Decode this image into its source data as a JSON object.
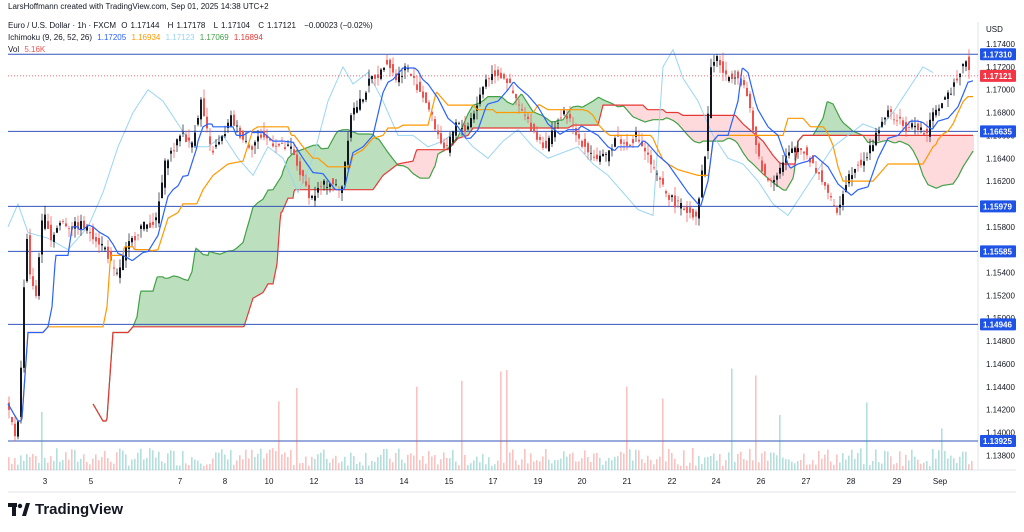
{
  "header": {
    "credit": "LarsHoffmann created with TradingView.com, Sep 01, 2025 14:38 UTC+2",
    "symbol": "Euro / U.S. Dollar · 1h · FXCM",
    "o_label": "O",
    "o_value": "1.17144",
    "h_label": "H",
    "h_value": "1.17178",
    "l_label": "L",
    "l_value": "1.17104",
    "c_label": "C",
    "c_value": "1.17121",
    "change": "−0.00023 (−0.02%)",
    "ichimoku_label": "Ichimoku (9, 26, 52, 26)",
    "ichimoku_values": [
      "1.17205",
      "1.16934",
      "1.17123",
      "1.17069",
      "1.16894"
    ],
    "vol_label": "Vol",
    "vol_value": "5.16K"
  },
  "brand": {
    "name": "TradingView"
  },
  "colors": {
    "up": "#26a69a",
    "down": "#ef5350",
    "candle_up": "#131722",
    "candle_down": "#ef5350",
    "tenkan": "#2962ff",
    "kijun": "#ff9800",
    "chikou": "#9ad5f2",
    "span_a": "#43a047",
    "span_b": "#e53935",
    "cloud_bull": "#a5d6a7",
    "cloud_bear": "#ffcdd2",
    "level_line": "#3355bb",
    "level_bg": "#1e53e5",
    "current_bg": "#f23645"
  },
  "chart_data": {
    "type": "candlestick",
    "title": "Euro / U.S. Dollar · 1h · FXCM",
    "currency_label": "USD",
    "ylim": [
      1.137,
      1.176
    ],
    "y_ticks": [
      "1.17400",
      "1.17200",
      "1.17000",
      "1.16800",
      "1.16600",
      "1.16400",
      "1.16200",
      "1.16000",
      "1.15800",
      "1.15600",
      "1.15400",
      "1.15200",
      "1.15000",
      "1.14800",
      "1.14600",
      "1.14400",
      "1.14200",
      "1.14000",
      "1.13800"
    ],
    "x_ticks": [
      "3",
      "5",
      "7",
      "8",
      "10",
      "12",
      "13",
      "14",
      "15",
      "17",
      "19",
      "20",
      "21",
      "22",
      "24",
      "26",
      "27",
      "28",
      "29",
      "Sep"
    ],
    "horizontal_levels": [
      "1.17310",
      "1.16635",
      "1.15979",
      "1.15585",
      "1.14946",
      "1.13925"
    ],
    "last_price": "1.17121",
    "price_path": [
      [
        0,
        1.1425
      ],
      [
        10,
        1.1395
      ],
      [
        14,
        1.143
      ],
      [
        20,
        1.158
      ],
      [
        25,
        1.153
      ],
      [
        30,
        1.152
      ],
      [
        35,
        1.158
      ],
      [
        40,
        1.159
      ],
      [
        45,
        1.157
      ],
      [
        55,
        1.1585
      ],
      [
        65,
        1.158
      ],
      [
        75,
        1.1582
      ],
      [
        85,
        1.1575
      ],
      [
        100,
        1.156
      ],
      [
        110,
        1.1535
      ],
      [
        120,
        1.156
      ],
      [
        135,
        1.158
      ],
      [
        150,
        1.1585
      ],
      [
        160,
        1.164
      ],
      [
        170,
        1.165
      ],
      [
        175,
        1.1665
      ],
      [
        185,
        1.165
      ],
      [
        195,
        1.169
      ],
      [
        205,
        1.1645
      ],
      [
        215,
        1.1655
      ],
      [
        225,
        1.1675
      ],
      [
        235,
        1.166
      ],
      [
        245,
        1.165
      ],
      [
        255,
        1.166
      ],
      [
        265,
        1.1655
      ],
      [
        275,
        1.165
      ],
      [
        285,
        1.1648
      ],
      [
        295,
        1.1625
      ],
      [
        305,
        1.1605
      ],
      [
        315,
        1.1615
      ],
      [
        325,
        1.162
      ],
      [
        335,
        1.161
      ],
      [
        345,
        1.168
      ],
      [
        355,
        1.169
      ],
      [
        365,
        1.171
      ],
      [
        375,
        1.1715
      ],
      [
        380,
        1.1728
      ],
      [
        390,
        1.171
      ],
      [
        400,
        1.172
      ],
      [
        410,
        1.1705
      ],
      [
        420,
        1.169
      ],
      [
        430,
        1.1665
      ],
      [
        440,
        1.1645
      ],
      [
        450,
        1.167
      ],
      [
        460,
        1.1665
      ],
      [
        470,
        1.1685
      ],
      [
        480,
        1.171
      ],
      [
        490,
        1.1715
      ],
      [
        500,
        1.171
      ],
      [
        510,
        1.169
      ],
      [
        520,
        1.1675
      ],
      [
        530,
        1.166
      ],
      [
        540,
        1.165
      ],
      [
        550,
        1.167
      ],
      [
        560,
        1.168
      ],
      [
        570,
        1.166
      ],
      [
        580,
        1.165
      ],
      [
        590,
        1.164
      ],
      [
        600,
        1.164
      ],
      [
        610,
        1.166
      ],
      [
        620,
        1.165
      ],
      [
        630,
        1.166
      ],
      [
        640,
        1.1645
      ],
      [
        650,
        1.1625
      ],
      [
        660,
        1.161
      ],
      [
        670,
        1.16
      ],
      [
        680,
        1.1595
      ],
      [
        690,
        1.159
      ],
      [
        700,
        1.165
      ],
      [
        705,
        1.172
      ],
      [
        710,
        1.173
      ],
      [
        720,
        1.171
      ],
      [
        730,
        1.1715
      ],
      [
        740,
        1.17
      ],
      [
        750,
        1.165
      ],
      [
        760,
        1.162
      ],
      [
        770,
        1.1625
      ],
      [
        780,
        1.164
      ],
      [
        790,
        1.165
      ],
      [
        800,
        1.1645
      ],
      [
        810,
        1.163
      ],
      [
        820,
        1.1615
      ],
      [
        830,
        1.159
      ],
      [
        840,
        1.162
      ],
      [
        850,
        1.1635
      ],
      [
        860,
        1.164
      ],
      [
        870,
        1.166
      ],
      [
        880,
        1.168
      ],
      [
        890,
        1.1675
      ],
      [
        900,
        1.1665
      ],
      [
        910,
        1.167
      ],
      [
        920,
        1.166
      ],
      [
        930,
        1.1685
      ],
      [
        940,
        1.169
      ],
      [
        950,
        1.171
      ],
      [
        960,
        1.1728
      ],
      [
        965,
        1.1712
      ]
    ],
    "chikou_path": [
      [
        0,
        1.158
      ],
      [
        10,
        1.16
      ],
      [
        20,
        1.1575
      ],
      [
        40,
        1.157
      ],
      [
        60,
        1.156
      ],
      [
        80,
        1.158
      ],
      [
        95,
        1.161
      ],
      [
        110,
        1.165
      ],
      [
        125,
        1.168
      ],
      [
        140,
        1.17
      ],
      [
        155,
        1.169
      ],
      [
        170,
        1.167
      ],
      [
        185,
        1.165
      ],
      [
        200,
        1.165
      ],
      [
        215,
        1.166
      ],
      [
        230,
        1.164
      ],
      [
        245,
        1.1625
      ],
      [
        260,
        1.165
      ],
      [
        275,
        1.164
      ],
      [
        290,
        1.161
      ],
      [
        305,
        1.164
      ],
      [
        320,
        1.169
      ],
      [
        335,
        1.172
      ],
      [
        345,
        1.1705
      ],
      [
        360,
        1.1715
      ],
      [
        375,
        1.169
      ],
      [
        390,
        1.166
      ],
      [
        405,
        1.166
      ],
      [
        420,
        1.165
      ],
      [
        435,
        1.1655
      ],
      [
        450,
        1.1665
      ],
      [
        465,
        1.165
      ],
      [
        480,
        1.164
      ],
      [
        495,
        1.1655
      ],
      [
        510,
        1.1665
      ],
      [
        525,
        1.165
      ],
      [
        540,
        1.164
      ],
      [
        555,
        1.1645
      ],
      [
        570,
        1.165
      ],
      [
        585,
        1.1635
      ],
      [
        600,
        1.1625
      ],
      [
        615,
        1.161
      ],
      [
        630,
        1.1595
      ],
      [
        645,
        1.159
      ],
      [
        655,
        1.172
      ],
      [
        665,
        1.1735
      ],
      [
        675,
        1.171
      ],
      [
        690,
        1.169
      ],
      [
        705,
        1.166
      ],
      [
        720,
        1.164
      ],
      [
        735,
        1.1635
      ],
      [
        750,
        1.162
      ],
      [
        765,
        1.16
      ],
      [
        780,
        1.159
      ],
      [
        795,
        1.161
      ],
      [
        810,
        1.163
      ],
      [
        825,
        1.165
      ],
      [
        840,
        1.166
      ],
      [
        855,
        1.167
      ],
      [
        870,
        1.1665
      ],
      [
        885,
        1.168
      ],
      [
        900,
        1.17
      ],
      [
        915,
        1.172
      ],
      [
        925,
        1.1715
      ]
    ]
  }
}
